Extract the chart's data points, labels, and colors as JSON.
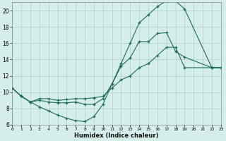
{
  "xlabel": "Humidex (Indice chaleur)",
  "bg_color": "#d6eeea",
  "line_color": "#1a6b5a",
  "grid_color": "#aacfca",
  "xlim": [
    0,
    23
  ],
  "ylim": [
    6,
    21
  ],
  "yticks": [
    6,
    8,
    10,
    12,
    14,
    16,
    18,
    20
  ],
  "xticks": [
    0,
    1,
    2,
    3,
    4,
    5,
    6,
    7,
    8,
    9,
    10,
    11,
    12,
    13,
    14,
    15,
    16,
    17,
    18,
    19,
    20,
    21,
    22,
    23
  ],
  "line1_x": [
    0,
    1,
    2,
    3,
    4,
    5,
    6,
    7,
    8,
    9,
    10,
    11,
    12,
    13,
    14,
    15,
    16,
    17,
    18,
    19,
    22,
    23
  ],
  "line1_y": [
    10.5,
    9.5,
    8.8,
    8.2,
    7.7,
    7.2,
    6.8,
    6.5,
    6.4,
    7.0,
    8.5,
    11.0,
    13.5,
    16.0,
    18.5,
    19.5,
    20.5,
    21.2,
    21.2,
    20.2,
    13.0,
    13.0
  ],
  "line2_x": [
    0,
    1,
    2,
    3,
    4,
    5,
    6,
    7,
    8,
    9,
    10,
    11,
    12,
    13,
    14,
    15,
    16,
    17,
    18,
    19,
    22,
    23
  ],
  "line2_y": [
    10.5,
    9.5,
    8.8,
    9.0,
    8.8,
    8.7,
    8.7,
    8.8,
    8.5,
    8.5,
    9.2,
    11.0,
    13.2,
    14.2,
    16.2,
    16.2,
    17.2,
    17.3,
    15.0,
    14.3,
    13.0,
    13.0
  ],
  "line3_x": [
    0,
    1,
    2,
    3,
    4,
    5,
    6,
    7,
    8,
    9,
    10,
    11,
    12,
    13,
    14,
    15,
    16,
    17,
    18,
    19,
    22,
    23
  ],
  "line3_y": [
    10.5,
    9.5,
    8.8,
    9.2,
    9.2,
    9.0,
    9.1,
    9.2,
    9.2,
    9.3,
    9.5,
    10.5,
    11.5,
    12.0,
    13.0,
    13.5,
    14.5,
    15.5,
    15.5,
    13.0,
    13.0,
    13.0
  ]
}
